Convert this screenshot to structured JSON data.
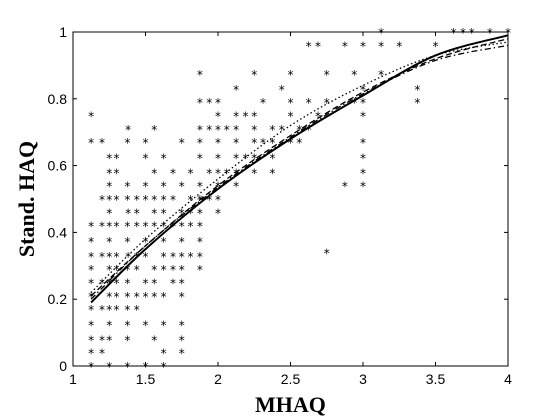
{
  "chart_data": {
    "type": "scatter",
    "title": "",
    "xlabel": "MHAQ",
    "ylabel": "Stand. HAQ",
    "xlim": [
      1,
      4
    ],
    "ylim": [
      0,
      1
    ],
    "xticks": [
      "1",
      "1.5",
      "2",
      "2.5",
      "3",
      "3.5",
      "4"
    ],
    "yticks": [
      "0",
      "0.2",
      "0.4",
      "0.6",
      "0.8",
      "1"
    ],
    "grid": false,
    "legend": "none",
    "marker_glyph": "*",
    "points": [
      [
        1.125,
        0.75
      ],
      [
        1.125,
        0.67
      ],
      [
        1.125,
        0.42
      ],
      [
        1.125,
        0.375
      ],
      [
        1.125,
        0.33
      ],
      [
        1.125,
        0.29
      ],
      [
        1.125,
        0.25
      ],
      [
        1.125,
        0.21
      ],
      [
        1.125,
        0.17
      ],
      [
        1.125,
        0.125
      ],
      [
        1.125,
        0.08
      ],
      [
        1.125,
        0.04
      ],
      [
        1.125,
        0.0
      ],
      [
        1.2,
        0.67
      ],
      [
        1.2,
        0.5
      ],
      [
        1.2,
        0.42
      ],
      [
        1.2,
        0.33
      ],
      [
        1.2,
        0.25
      ],
      [
        1.2,
        0.17
      ],
      [
        1.2,
        0.08
      ],
      [
        1.2,
        0.04
      ],
      [
        1.25,
        0.625
      ],
      [
        1.25,
        0.58
      ],
      [
        1.25,
        0.54
      ],
      [
        1.25,
        0.5
      ],
      [
        1.25,
        0.46
      ],
      [
        1.25,
        0.42
      ],
      [
        1.25,
        0.375
      ],
      [
        1.25,
        0.33
      ],
      [
        1.25,
        0.29
      ],
      [
        1.25,
        0.25
      ],
      [
        1.25,
        0.21
      ],
      [
        1.25,
        0.17
      ],
      [
        1.25,
        0.125
      ],
      [
        1.25,
        0.08
      ],
      [
        1.25,
        0.0
      ],
      [
        1.3,
        0.625
      ],
      [
        1.3,
        0.58
      ],
      [
        1.3,
        0.5
      ],
      [
        1.3,
        0.42
      ],
      [
        1.3,
        0.33
      ],
      [
        1.3,
        0.29
      ],
      [
        1.3,
        0.25
      ],
      [
        1.3,
        0.21
      ],
      [
        1.3,
        0.17
      ],
      [
        1.375,
        0.67
      ],
      [
        1.375,
        0.54
      ],
      [
        1.375,
        0.5
      ],
      [
        1.375,
        0.42
      ],
      [
        1.375,
        0.375
      ],
      [
        1.375,
        0.29
      ],
      [
        1.375,
        0.25
      ],
      [
        1.375,
        0.21
      ],
      [
        1.375,
        0.17
      ],
      [
        1.375,
        0.125
      ],
      [
        1.375,
        0.08
      ],
      [
        1.375,
        0.0
      ],
      [
        1.38,
        0.71
      ],
      [
        1.38,
        0.46
      ],
      [
        1.38,
        0.33
      ],
      [
        1.44,
        0.5
      ],
      [
        1.44,
        0.46
      ],
      [
        1.44,
        0.42
      ],
      [
        1.44,
        0.33
      ],
      [
        1.44,
        0.29
      ],
      [
        1.44,
        0.21
      ],
      [
        1.44,
        0.17
      ],
      [
        1.5,
        0.67
      ],
      [
        1.5,
        0.625
      ],
      [
        1.5,
        0.54
      ],
      [
        1.5,
        0.5
      ],
      [
        1.5,
        0.42
      ],
      [
        1.5,
        0.375
      ],
      [
        1.5,
        0.33
      ],
      [
        1.5,
        0.25
      ],
      [
        1.5,
        0.21
      ],
      [
        1.5,
        0.125
      ],
      [
        1.5,
        0.0
      ],
      [
        1.56,
        0.71
      ],
      [
        1.56,
        0.58
      ],
      [
        1.56,
        0.5
      ],
      [
        1.56,
        0.46
      ],
      [
        1.56,
        0.42
      ],
      [
        1.56,
        0.29
      ],
      [
        1.56,
        0.25
      ],
      [
        1.56,
        0.21
      ],
      [
        1.56,
        0.08
      ],
      [
        1.625,
        0.625
      ],
      [
        1.625,
        0.54
      ],
      [
        1.625,
        0.5
      ],
      [
        1.625,
        0.46
      ],
      [
        1.625,
        0.42
      ],
      [
        1.625,
        0.375
      ],
      [
        1.625,
        0.33
      ],
      [
        1.625,
        0.29
      ],
      [
        1.625,
        0.21
      ],
      [
        1.625,
        0.125
      ],
      [
        1.625,
        0.04
      ],
      [
        1.625,
        0.0
      ],
      [
        1.69,
        0.58
      ],
      [
        1.69,
        0.5
      ],
      [
        1.69,
        0.42
      ],
      [
        1.69,
        0.33
      ],
      [
        1.69,
        0.29
      ],
      [
        1.69,
        0.25
      ],
      [
        1.75,
        0.67
      ],
      [
        1.75,
        0.54
      ],
      [
        1.75,
        0.46
      ],
      [
        1.75,
        0.42
      ],
      [
        1.75,
        0.375
      ],
      [
        1.75,
        0.33
      ],
      [
        1.75,
        0.29
      ],
      [
        1.75,
        0.25
      ],
      [
        1.75,
        0.21
      ],
      [
        1.75,
        0.125
      ],
      [
        1.75,
        0.08
      ],
      [
        1.75,
        0.04
      ],
      [
        1.81,
        0.58
      ],
      [
        1.81,
        0.5
      ],
      [
        1.81,
        0.46
      ],
      [
        1.81,
        0.42
      ],
      [
        1.81,
        0.33
      ],
      [
        1.875,
        0.875
      ],
      [
        1.875,
        0.79
      ],
      [
        1.875,
        0.71
      ],
      [
        1.875,
        0.67
      ],
      [
        1.875,
        0.625
      ],
      [
        1.875,
        0.54
      ],
      [
        1.875,
        0.5
      ],
      [
        1.875,
        0.46
      ],
      [
        1.875,
        0.42
      ],
      [
        1.875,
        0.375
      ],
      [
        1.875,
        0.33
      ],
      [
        1.875,
        0.29
      ],
      [
        1.94,
        0.79
      ],
      [
        1.94,
        0.71
      ],
      [
        1.94,
        0.58
      ],
      [
        1.94,
        0.5
      ],
      [
        2.0,
        0.79
      ],
      [
        2.0,
        0.75
      ],
      [
        2.0,
        0.71
      ],
      [
        2.0,
        0.67
      ],
      [
        2.0,
        0.625
      ],
      [
        2.0,
        0.58
      ],
      [
        2.0,
        0.54
      ],
      [
        2.0,
        0.5
      ],
      [
        2.0,
        0.46
      ],
      [
        2.06,
        0.71
      ],
      [
        2.06,
        0.58
      ],
      [
        2.125,
        0.83
      ],
      [
        2.125,
        0.75
      ],
      [
        2.125,
        0.71
      ],
      [
        2.125,
        0.67
      ],
      [
        2.125,
        0.625
      ],
      [
        2.125,
        0.58
      ],
      [
        2.125,
        0.54
      ],
      [
        2.19,
        0.75
      ],
      [
        2.19,
        0.625
      ],
      [
        2.25,
        0.875
      ],
      [
        2.25,
        0.75
      ],
      [
        2.25,
        0.71
      ],
      [
        2.25,
        0.67
      ],
      [
        2.25,
        0.625
      ],
      [
        2.25,
        0.58
      ],
      [
        2.31,
        0.79
      ],
      [
        2.31,
        0.67
      ],
      [
        2.375,
        0.71
      ],
      [
        2.375,
        0.67
      ],
      [
        2.375,
        0.625
      ],
      [
        2.375,
        0.58
      ],
      [
        2.44,
        0.83
      ],
      [
        2.44,
        0.71
      ],
      [
        2.5,
        0.875
      ],
      [
        2.5,
        0.79
      ],
      [
        2.5,
        0.75
      ],
      [
        2.5,
        0.67
      ],
      [
        2.56,
        0.71
      ],
      [
        2.56,
        0.67
      ],
      [
        2.625,
        0.96
      ],
      [
        2.625,
        0.79
      ],
      [
        2.625,
        0.71
      ],
      [
        2.69,
        0.96
      ],
      [
        2.69,
        0.75
      ],
      [
        2.75,
        0.875
      ],
      [
        2.75,
        0.79
      ],
      [
        2.75,
        0.34
      ],
      [
        2.875,
        0.96
      ],
      [
        2.875,
        0.54
      ],
      [
        2.94,
        0.875
      ],
      [
        2.94,
        0.79
      ],
      [
        3.0,
        0.96
      ],
      [
        3.0,
        0.83
      ],
      [
        3.0,
        0.79
      ],
      [
        3.0,
        0.75
      ],
      [
        3.0,
        0.67
      ],
      [
        3.0,
        0.625
      ],
      [
        3.0,
        0.58
      ],
      [
        3.0,
        0.54
      ],
      [
        3.125,
        1.0
      ],
      [
        3.125,
        0.96
      ],
      [
        3.125,
        0.875
      ],
      [
        3.25,
        0.96
      ],
      [
        3.375,
        0.83
      ],
      [
        3.375,
        0.79
      ],
      [
        3.5,
        0.96
      ],
      [
        3.625,
        1.0
      ],
      [
        3.69,
        1.0
      ],
      [
        3.75,
        1.0
      ],
      [
        3.875,
        1.0
      ],
      [
        4.0,
        1.0
      ]
    ],
    "series": [
      {
        "style": "solid",
        "points": [
          [
            1.125,
            0.19
          ],
          [
            1.5,
            0.35
          ],
          [
            2.0,
            0.53
          ],
          [
            2.5,
            0.68
          ],
          [
            3.0,
            0.81
          ],
          [
            3.5,
            0.93
          ],
          [
            4.0,
            0.99
          ]
        ]
      },
      {
        "style": "dashed",
        "points": [
          [
            1.125,
            0.21
          ],
          [
            1.5,
            0.36
          ],
          [
            2.0,
            0.54
          ],
          [
            2.5,
            0.69
          ],
          [
            3.0,
            0.82
          ],
          [
            3.5,
            0.92
          ],
          [
            4.0,
            0.98
          ]
        ]
      },
      {
        "style": "dotted",
        "points": [
          [
            1.125,
            0.22
          ],
          [
            1.5,
            0.38
          ],
          [
            2.0,
            0.56
          ],
          [
            2.5,
            0.72
          ],
          [
            3.0,
            0.84
          ],
          [
            3.5,
            0.93
          ],
          [
            4.0,
            0.97
          ]
        ]
      },
      {
        "style": "dash-dot",
        "points": [
          [
            1.125,
            0.2
          ],
          [
            1.5,
            0.36
          ],
          [
            2.0,
            0.535
          ],
          [
            2.5,
            0.685
          ],
          [
            3.0,
            0.815
          ],
          [
            3.5,
            0.915
          ],
          [
            4.0,
            0.96
          ]
        ]
      }
    ]
  }
}
